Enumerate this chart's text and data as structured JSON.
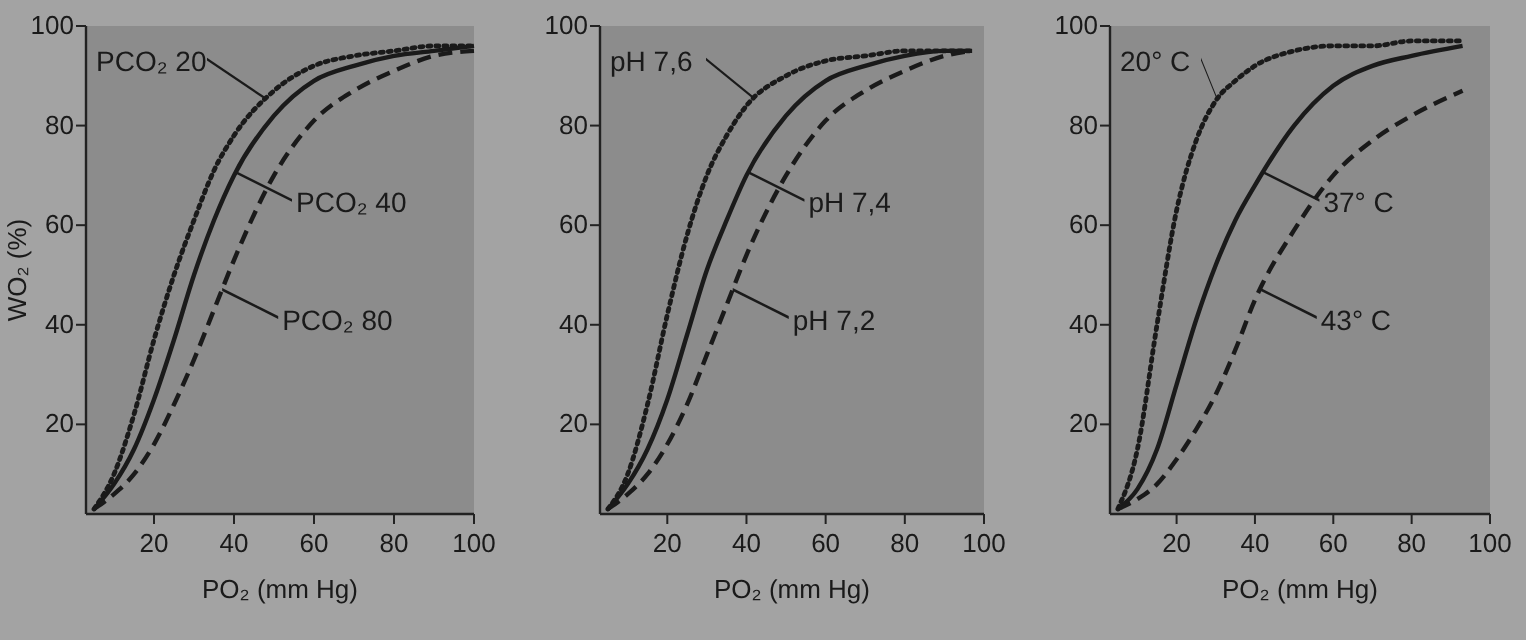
{
  "chart_data": [
    {
      "type": "line",
      "legend": "right",
      "xlabel": "PO₂ (mm Hg)",
      "ylabel": "WO₂ (%)",
      "xlim": [
        3,
        100
      ],
      "ylim": [
        2,
        100
      ],
      "xticks": [
        20,
        40,
        60,
        80,
        100
      ],
      "yticks": [
        20,
        40,
        60,
        80,
        100
      ],
      "series": [
        {
          "name": "PCO₂ 20",
          "color": "#1a1a1a",
          "line_style": "dotted",
          "x": [
            5,
            10,
            15,
            20,
            25,
            30,
            35,
            40,
            50,
            60,
            70,
            80,
            90,
            100
          ],
          "values": [
            3,
            10,
            22,
            37,
            50,
            61,
            71,
            78,
            87,
            92,
            94,
            95,
            96,
            96
          ]
        },
        {
          "name": "PCO₂ 40",
          "color": "#1a1a1a",
          "line_style": "solid",
          "x": [
            5,
            10,
            15,
            20,
            25,
            30,
            35,
            40,
            50,
            60,
            70,
            80,
            90,
            100
          ],
          "values": [
            3,
            8,
            15,
            25,
            37,
            50,
            61,
            70,
            82,
            89,
            92,
            94,
            95,
            96
          ]
        },
        {
          "name": "PCO₂ 80",
          "color": "#1a1a1a",
          "line_style": "dashed",
          "x": [
            5,
            10,
            15,
            20,
            25,
            30,
            35,
            40,
            50,
            60,
            70,
            80,
            90,
            100
          ],
          "values": [
            3,
            6,
            10,
            16,
            24,
            33,
            43,
            53,
            70,
            81,
            87,
            91,
            94,
            95
          ]
        }
      ]
    },
    {
      "type": "line",
      "xlabel": "PO₂ (mm Hg)",
      "xlim": [
        3,
        100
      ],
      "ylim": [
        2,
        100
      ],
      "xticks": [
        20,
        40,
        60,
        80,
        100
      ],
      "yticks": [
        20,
        40,
        60,
        80,
        100
      ],
      "legend": "right",
      "series": [
        {
          "name": "pH 7,6",
          "color": "#1a1a1a",
          "line_style": "dotted",
          "x": [
            5,
            10,
            15,
            20,
            25,
            30,
            35,
            40,
            50,
            60,
            70,
            80,
            90,
            97
          ],
          "values": [
            3,
            10,
            24,
            42,
            58,
            70,
            78,
            84,
            90,
            93,
            94,
            95,
            95,
            95
          ]
        },
        {
          "name": "pH 7,4",
          "color": "#1a1a1a",
          "line_style": "solid",
          "x": [
            5,
            10,
            15,
            20,
            25,
            30,
            35,
            40,
            50,
            60,
            70,
            80,
            90,
            97
          ],
          "values": [
            3,
            8,
            15,
            25,
            38,
            51,
            61,
            70,
            82,
            89,
            92,
            94,
            95,
            95
          ]
        },
        {
          "name": "pH 7,2",
          "color": "#1a1a1a",
          "line_style": "dashed",
          "x": [
            5,
            10,
            15,
            20,
            25,
            30,
            35,
            40,
            50,
            60,
            70,
            80,
            90,
            97
          ],
          "values": [
            3,
            6,
            10,
            16,
            24,
            34,
            44,
            54,
            70,
            81,
            87,
            91,
            94,
            95
          ]
        }
      ]
    },
    {
      "type": "line",
      "xlabel": "PO₂ (mm Hg)",
      "xlim": [
        3,
        100
      ],
      "ylim": [
        2,
        100
      ],
      "xticks": [
        20,
        40,
        60,
        80,
        100
      ],
      "yticks": [
        20,
        40,
        60,
        80,
        100
      ],
      "legend": "right",
      "series": [
        {
          "name": "20° C",
          "color": "#1a1a1a",
          "line_style": "dotted",
          "x": [
            5,
            10,
            15,
            20,
            25,
            30,
            35,
            40,
            50,
            60,
            70,
            80,
            93
          ],
          "values": [
            3,
            15,
            40,
            63,
            77,
            85,
            89,
            92,
            95,
            96,
            96,
            97,
            97
          ]
        },
        {
          "name": "37° C",
          "color": "#1a1a1a",
          "line_style": "solid",
          "x": [
            5,
            10,
            15,
            20,
            25,
            30,
            35,
            40,
            50,
            60,
            70,
            80,
            93
          ],
          "values": [
            3,
            7,
            15,
            28,
            41,
            52,
            61,
            68,
            80,
            88,
            92,
            94,
            96
          ]
        },
        {
          "name": "43° C",
          "color": "#1a1a1a",
          "line_style": "dashed",
          "x": [
            5,
            10,
            15,
            20,
            25,
            30,
            35,
            40,
            50,
            60,
            70,
            80,
            93
          ],
          "values": [
            3,
            5,
            8,
            13,
            19,
            26,
            35,
            45,
            59,
            70,
            77,
            82,
            87
          ]
        }
      ]
    }
  ]
}
